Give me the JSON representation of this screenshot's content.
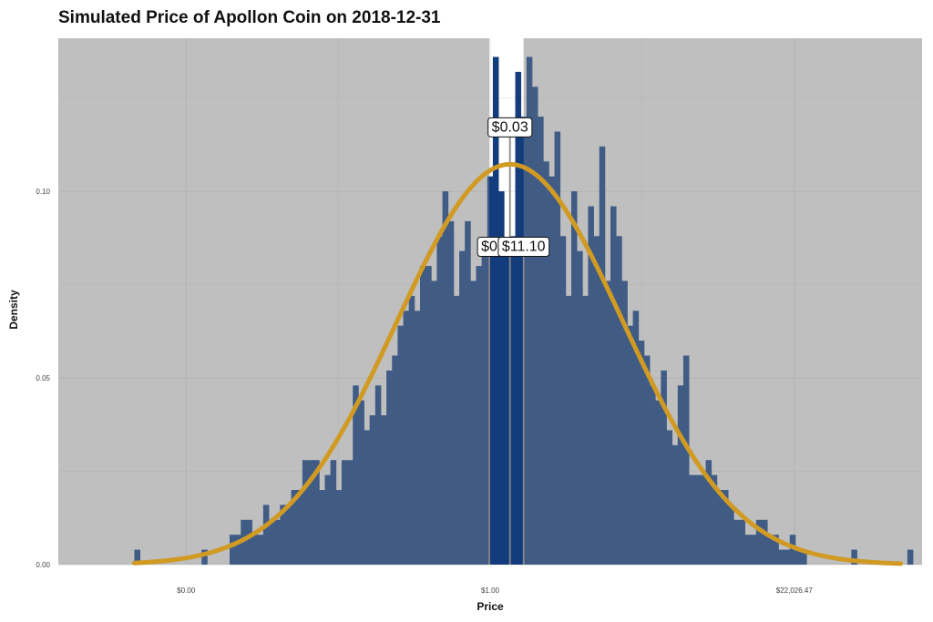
{
  "chart_data": {
    "type": "bar",
    "title": "Simulated Price of Apollon Coin on 2018-12-31",
    "xlabel": "Price",
    "ylabel": "Density",
    "x_scale": "log",
    "x_ticks": [
      {
        "label": "$0.00",
        "value": -10
      },
      {
        "label": "$1.00",
        "value": 0
      },
      {
        "label": "$22,026.47",
        "value": 10
      }
    ],
    "y_ticks": [
      {
        "label": "0.00",
        "value": 0
      },
      {
        "label": "0.05",
        "value": 0.05
      },
      {
        "label": "0.10",
        "value": 0.1
      }
    ],
    "xlim": [
      -14.2,
      14.2
    ],
    "ylim": [
      0,
      0.141
    ],
    "grid": true,
    "bin_range": [
      -11.7,
      13.9
    ],
    "values": [
      0.004,
      0.0,
      0.0,
      0.0,
      0.0,
      0.0,
      0.0,
      0.0,
      0.0,
      0.0,
      0.0,
      0.0,
      0.004,
      0.0,
      0.0,
      0.0,
      0.0,
      0.008,
      0.008,
      0.012,
      0.012,
      0.008,
      0.008,
      0.016,
      0.012,
      0.012,
      0.016,
      0.016,
      0.02,
      0.02,
      0.028,
      0.028,
      0.028,
      0.02,
      0.024,
      0.028,
      0.02,
      0.028,
      0.028,
      0.048,
      0.044,
      0.036,
      0.04,
      0.048,
      0.04,
      0.052,
      0.056,
      0.064,
      0.068,
      0.072,
      0.068,
      0.08,
      0.08,
      0.076,
      0.088,
      0.1,
      0.092,
      0.072,
      0.084,
      0.092,
      0.076,
      0.08,
      0.084,
      0.104,
      0.136,
      0.1,
      0.084,
      0.088,
      0.132,
      0.12,
      0.136,
      0.128,
      0.12,
      0.108,
      0.104,
      0.116,
      0.088,
      0.072,
      0.1,
      0.084,
      0.072,
      0.096,
      0.088,
      0.112,
      0.076,
      0.096,
      0.088,
      0.076,
      0.064,
      0.068,
      0.06,
      0.056,
      0.048,
      0.044,
      0.052,
      0.036,
      0.032,
      0.048,
      0.056,
      0.024,
      0.024,
      0.024,
      0.028,
      0.024,
      0.02,
      0.02,
      0.016,
      0.012,
      0.012,
      0.008,
      0.008,
      0.012,
      0.012,
      0.008,
      0.008,
      0.004,
      0.004,
      0.008,
      0.004,
      0.004,
      0.0,
      0.0,
      0.0,
      0.0,
      0.0,
      0.0,
      0.0,
      0.0,
      0.004,
      0.0,
      0.0,
      0.0,
      0.0,
      0.0,
      0.0,
      0.0,
      0.0,
      0.0,
      0.004
    ],
    "density_curve": {
      "mean": 0.65,
      "sd": 3.72,
      "x_from": -11.7,
      "x_to": 13.5
    },
    "annotations": [
      {
        "label": "$0",
        "x": -0.03,
        "ylabel_at": 0.0855
      },
      {
        "label": "$0.03",
        "x": 0.65,
        "ylabel_at": 0.1175
      },
      {
        "label": "$11.10",
        "x": 1.1,
        "ylabel_at": 0.0855
      }
    ],
    "shaded_x_limits": [
      -0.03,
      1.1
    ],
    "colors": {
      "bar_fill": "#123c7b",
      "shade": "#999999",
      "curve": "#d09a23",
      "panel": "#ffffff",
      "grid": "#e6e6e6"
    }
  }
}
